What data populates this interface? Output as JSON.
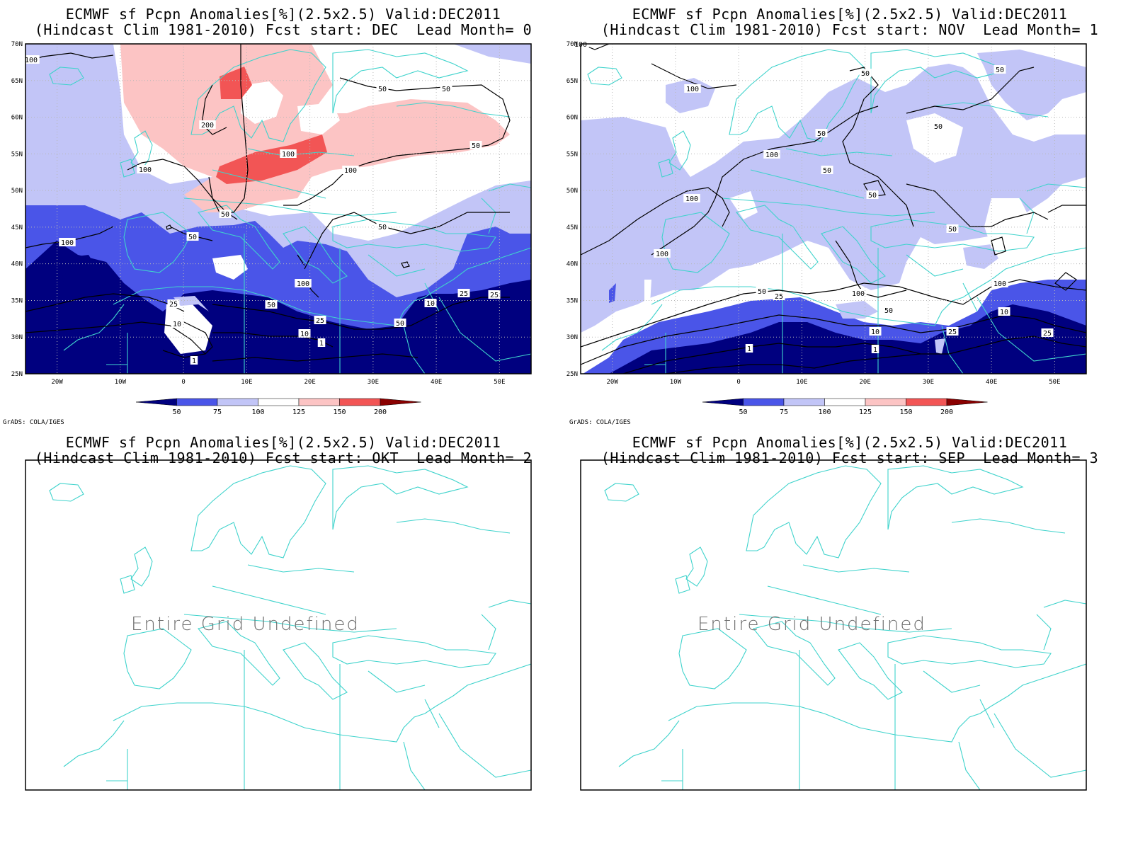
{
  "colors": {
    "c_lt50": "#00007f",
    "c_50_75": "#4a55e8",
    "c_75_100": "#c2c5f7",
    "c_100_125": "#ffffff",
    "c_125_150": "#fcc4c4",
    "c_150_200": "#f25555",
    "c_gt200": "#8a0000",
    "coast": "#3fd3cc",
    "contour": "#000000"
  },
  "lat_ticks": [
    "70N",
    "65N",
    "60N",
    "55N",
    "50N",
    "45N",
    "40N",
    "35N",
    "30N",
    "25N"
  ],
  "lon_ticks": [
    "20W",
    "10W",
    "0",
    "10E",
    "20E",
    "30E",
    "40E",
    "50E"
  ],
  "legend_labels": [
    "50",
    "75",
    "100",
    "125",
    "150",
    "200"
  ],
  "credit": "GrADS: COLA/IGES",
  "panels": [
    {
      "title1": "ECMWF sf Pcpn Anomalies[%](2.5x2.5) Valid:DEC2011",
      "title2": "(Hindcast Clim 1981-2010) Fcst start: DEC  Lead Month= 0",
      "defined": true,
      "contour_labels": [
        "100",
        "50",
        "50",
        "200",
        "100",
        "50",
        "100",
        "100",
        "50",
        "50",
        "50",
        "100",
        "25",
        "10",
        "50",
        "25",
        "10",
        "1",
        "1",
        "10",
        "25",
        "25",
        "50",
        "100"
      ]
    },
    {
      "title1": "ECMWF sf Pcpn Anomalies[%](2.5x2.5) Valid:DEC2011",
      "title2": "(Hindcast Clim 1981-2010) Fcst start: NOV  Lead Month= 1",
      "defined": true,
      "contour_labels": [
        "100",
        "100",
        "50",
        "50",
        "50",
        "100",
        "50",
        "100",
        "50",
        "50",
        "100",
        "100",
        "50",
        "25",
        "50",
        "10",
        "25",
        "10",
        "25",
        "1",
        "1",
        "100",
        "50"
      ]
    },
    {
      "title1": "ECMWF sf Pcpn Anomalies[%](2.5x2.5) Valid:DEC2011",
      "title2": "(Hindcast Clim 1981-2010) Fcst start: OKT  Lead Month= 2",
      "defined": false,
      "message": "Entire Grid Undefined"
    },
    {
      "title1": "ECMWF sf Pcpn Anomalies[%](2.5x2.5) Valid:DEC2011",
      "title2": "(Hindcast Clim 1981-2010) Fcst start: SEP  Lead Month= 3",
      "defined": false,
      "message": "Entire Grid Undefined"
    }
  ]
}
